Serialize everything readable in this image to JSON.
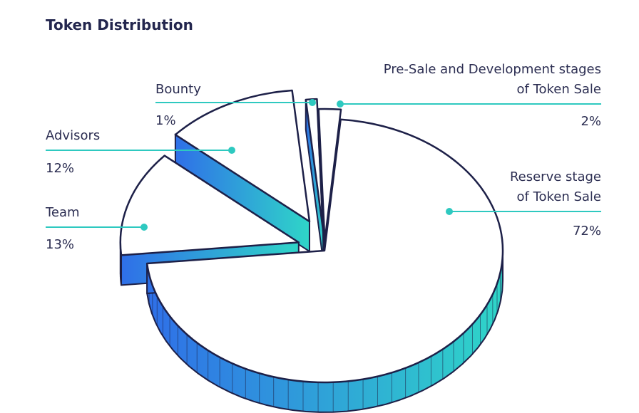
{
  "chart_data": {
    "type": "pie",
    "title": "Token Distribution",
    "slices": [
      {
        "label_lines": [
          "Reserve stage",
          "of Token Sale"
        ],
        "value": 72,
        "value_label": "72%"
      },
      {
        "label_lines": [
          "Team"
        ],
        "value": 13,
        "value_label": "13%"
      },
      {
        "label_lines": [
          "Advisors"
        ],
        "value": 12,
        "value_label": "12%"
      },
      {
        "label_lines": [
          "Bounty"
        ],
        "value": 1,
        "value_label": "1%"
      },
      {
        "label_lines": [
          "Pre-Sale and Development stages",
          "of Token Sale"
        ],
        "value": 2,
        "value_label": "2%"
      }
    ],
    "exploded": true,
    "style": "3d",
    "colors": {
      "top": "#ffffff",
      "outline": "#1d2048",
      "side_start": "#2f6fe8",
      "side_end": "#2fd6c8",
      "leader": "#2ec9c0"
    }
  }
}
